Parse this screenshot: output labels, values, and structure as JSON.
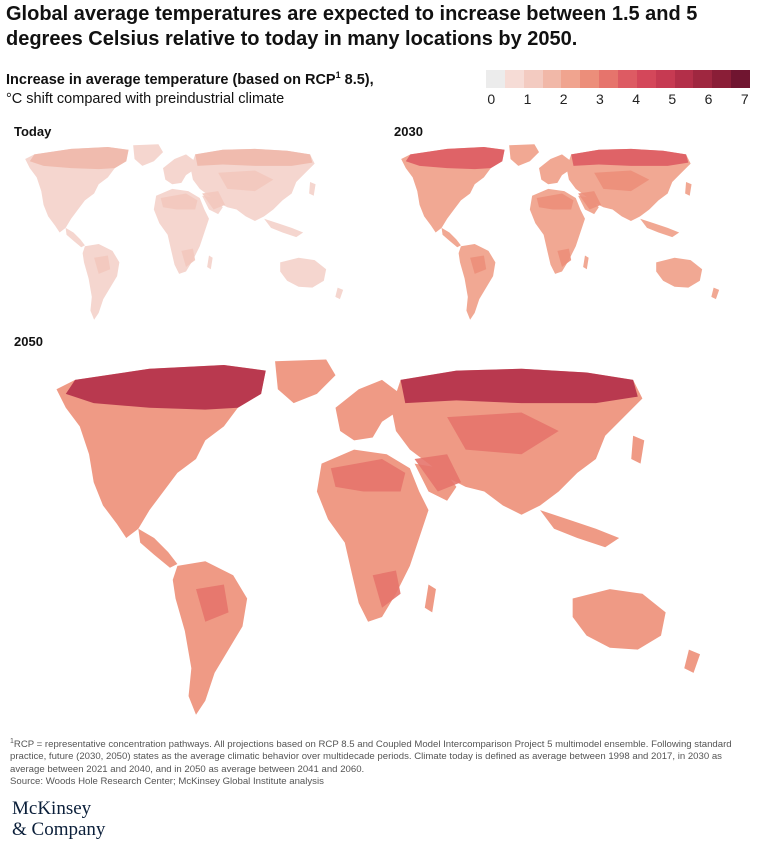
{
  "title": "Global average temperatures are expected to increase between 1.5 and 5 degrees Celsius relative to today in many locations by 2050.",
  "subtitle": {
    "line1_bold": "Increase in average temperature (based on RCP",
    "line1_sup": "1",
    "line1_end": " 8.5),",
    "line2": "°C shift compared with preindustrial climate"
  },
  "legend": {
    "colors": [
      "#ececec",
      "#f6dcd6",
      "#f3cbc1",
      "#f1b8a8",
      "#f0a48f",
      "#ec8e7a",
      "#e6746c",
      "#dd5b63",
      "#d4475a",
      "#c63a52",
      "#b32f49",
      "#9f2740",
      "#8a1e37",
      "#701530"
    ],
    "ticks": [
      "0",
      "1",
      "2",
      "3",
      "4",
      "5",
      "6",
      "7"
    ]
  },
  "maps": [
    {
      "label": "Today",
      "level_fill": "#f5d6cf",
      "hot_fill": "#f3c8bd",
      "arctic_fill": "#f0b8aa"
    },
    {
      "label": "2030",
      "level_fill": "#f1a893",
      "hot_fill": "#ec8e7a",
      "arctic_fill": "#dd5b63"
    },
    {
      "label": "2050",
      "level_fill": "#ef9a85",
      "hot_fill": "#e6746c",
      "arctic_fill": "#b32f49"
    }
  ],
  "footnote": {
    "sup": "1",
    "text": "RCP = representative concentration pathways. All projections based on RCP 8.5 and Coupled Model Intercomparison Project 5 multimodel ensemble. Following standard practice, future (2030, 2050) states as the average climatic behavior over multidecade periods. Climate today is defined as average between 1998 and 2017, in 2030 as average between 2021 and 2040, and in 2050 as average between 2041 and 2060.",
    "source": "Source: Woods Hole Research Center; McKinsey Global Institute analysis"
  },
  "logo": {
    "line1": "McKinsey",
    "line2": "& Company"
  }
}
